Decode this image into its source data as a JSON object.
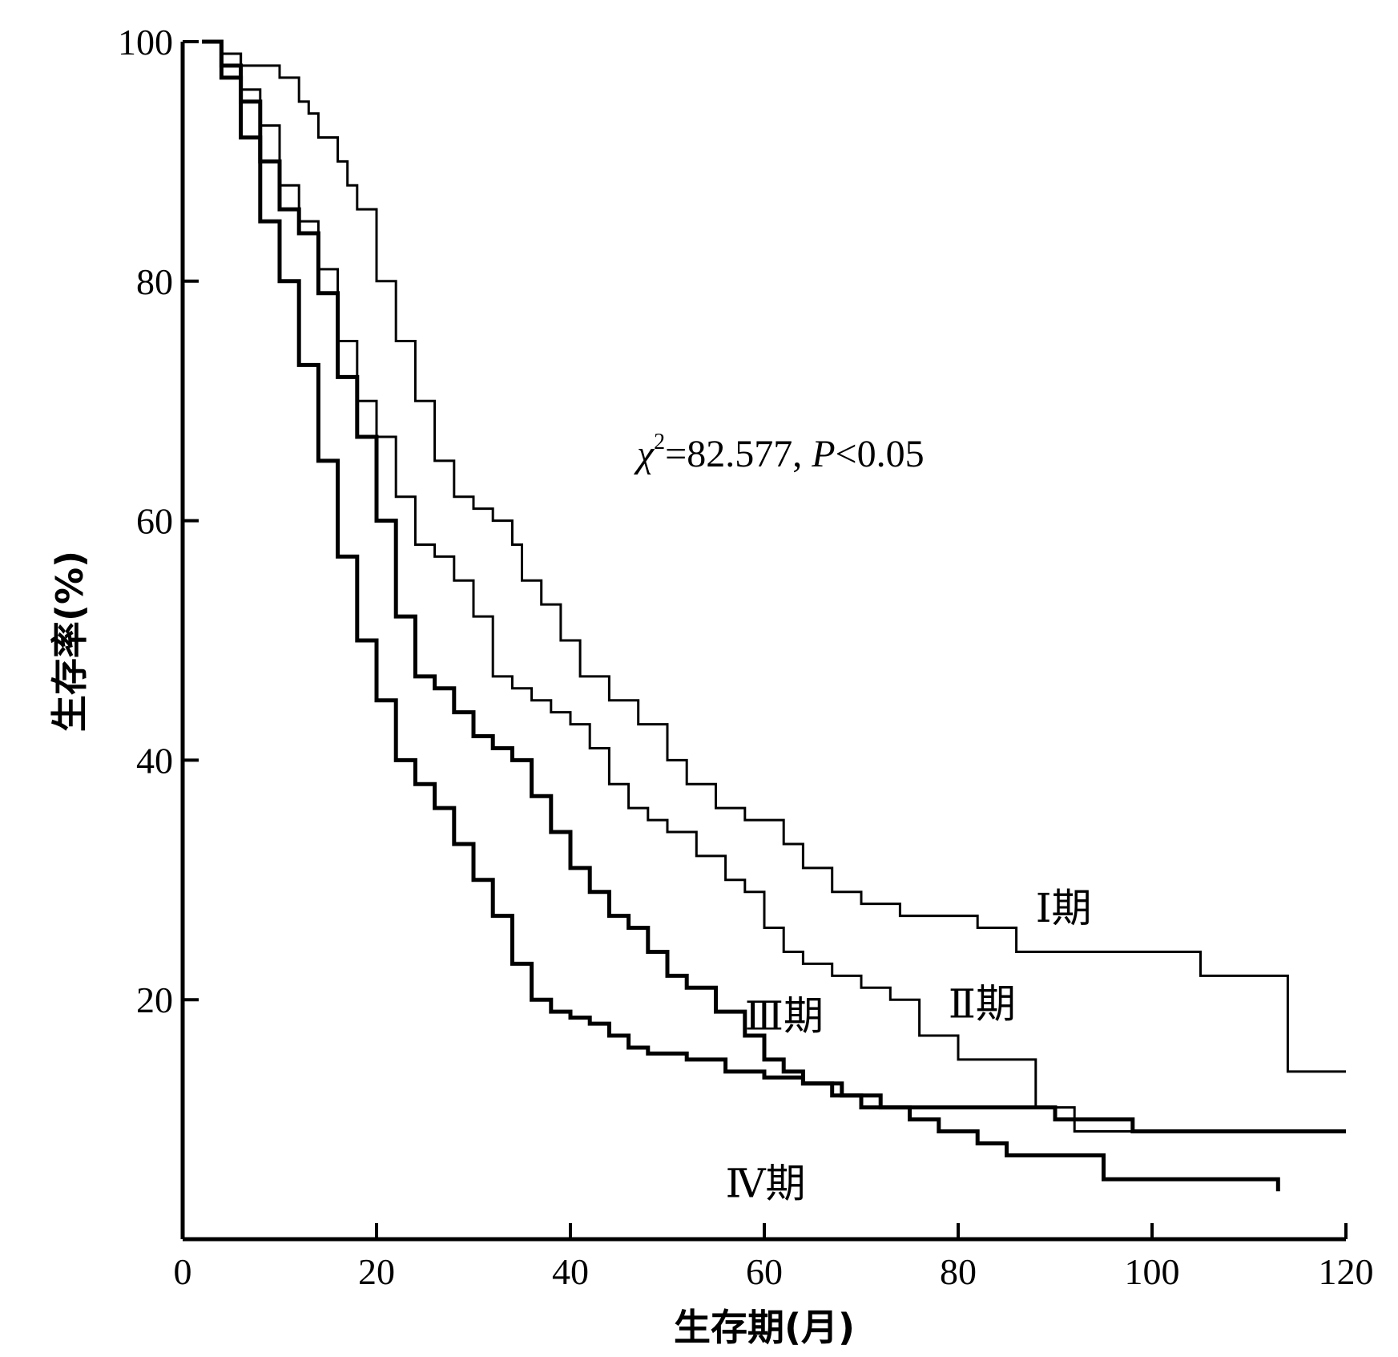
{
  "chart_data": {
    "type": "line",
    "step": true,
    "xlabel": "生存期(月)",
    "ylabel": "生存率(%)",
    "xlim": [
      0,
      120
    ],
    "ylim": [
      0,
      100
    ],
    "x_ticks": [
      0,
      20,
      40,
      60,
      80,
      100,
      120
    ],
    "y_ticks": [
      20,
      40,
      60,
      80,
      100
    ],
    "grid": false,
    "annotation": {
      "chi_symbol": "χ",
      "chi_sup": "2",
      "text_mid": "=82.577, ",
      "p_symbol": "P",
      "text_end": "<0.05"
    },
    "series": [
      {
        "name": "Ⅰ期",
        "color": "#000000",
        "points": [
          [
            2,
            100
          ],
          [
            4,
            99
          ],
          [
            6,
            98
          ],
          [
            8,
            98
          ],
          [
            10,
            97
          ],
          [
            11,
            97
          ],
          [
            12,
            95
          ],
          [
            13,
            94
          ],
          [
            14,
            92
          ],
          [
            16,
            90
          ],
          [
            17,
            88
          ],
          [
            18,
            86
          ],
          [
            20,
            80
          ],
          [
            22,
            75
          ],
          [
            24,
            70
          ],
          [
            26,
            65
          ],
          [
            28,
            62
          ],
          [
            30,
            61
          ],
          [
            32,
            60
          ],
          [
            34,
            58
          ],
          [
            35,
            55
          ],
          [
            37,
            53
          ],
          [
            39,
            50
          ],
          [
            41,
            47
          ],
          [
            44,
            45
          ],
          [
            47,
            43
          ],
          [
            50,
            40
          ],
          [
            52,
            38
          ],
          [
            55,
            36
          ],
          [
            58,
            35
          ],
          [
            62,
            33
          ],
          [
            64,
            31
          ],
          [
            67,
            29
          ],
          [
            70,
            28
          ],
          [
            74,
            27
          ],
          [
            82,
            26
          ],
          [
            86,
            24
          ],
          [
            105,
            22
          ],
          [
            114,
            14
          ],
          [
            120,
            14
          ]
        ]
      },
      {
        "name": "Ⅱ期",
        "color": "#000000",
        "points": [
          [
            2,
            100
          ],
          [
            4,
            99
          ],
          [
            6,
            96
          ],
          [
            8,
            93
          ],
          [
            10,
            88
          ],
          [
            12,
            85
          ],
          [
            14,
            81
          ],
          [
            16,
            75
          ],
          [
            18,
            70
          ],
          [
            20,
            67
          ],
          [
            22,
            62
          ],
          [
            24,
            58
          ],
          [
            26,
            57
          ],
          [
            28,
            55
          ],
          [
            30,
            52
          ],
          [
            32,
            47
          ],
          [
            34,
            46
          ],
          [
            36,
            45
          ],
          [
            38,
            44
          ],
          [
            40,
            43
          ],
          [
            42,
            41
          ],
          [
            44,
            38
          ],
          [
            46,
            36
          ],
          [
            48,
            35
          ],
          [
            50,
            34
          ],
          [
            53,
            32
          ],
          [
            56,
            30
          ],
          [
            58,
            29
          ],
          [
            60,
            26
          ],
          [
            62,
            24
          ],
          [
            64,
            23
          ],
          [
            67,
            22
          ],
          [
            70,
            21
          ],
          [
            73,
            20
          ],
          [
            76,
            17
          ],
          [
            80,
            15
          ],
          [
            85,
            15
          ],
          [
            88,
            11
          ],
          [
            92,
            9
          ],
          [
            100,
            9
          ],
          [
            110,
            9
          ],
          [
            120,
            9
          ]
        ]
      },
      {
        "name": "Ⅲ期",
        "color": "#000000",
        "points": [
          [
            2,
            100
          ],
          [
            4,
            98
          ],
          [
            6,
            95
          ],
          [
            8,
            90
          ],
          [
            10,
            86
          ],
          [
            12,
            84
          ],
          [
            14,
            79
          ],
          [
            16,
            72
          ],
          [
            18,
            67
          ],
          [
            20,
            60
          ],
          [
            22,
            52
          ],
          [
            24,
            47
          ],
          [
            26,
            46
          ],
          [
            28,
            44
          ],
          [
            30,
            42
          ],
          [
            32,
            41
          ],
          [
            34,
            40
          ],
          [
            36,
            37
          ],
          [
            38,
            34
          ],
          [
            40,
            31
          ],
          [
            42,
            29
          ],
          [
            44,
            27
          ],
          [
            46,
            26
          ],
          [
            48,
            24
          ],
          [
            50,
            22
          ],
          [
            52,
            21
          ],
          [
            55,
            19
          ],
          [
            58,
            17
          ],
          [
            60,
            15
          ],
          [
            62,
            14
          ],
          [
            64,
            13
          ],
          [
            67,
            12
          ],
          [
            70,
            11
          ],
          [
            75,
            11
          ],
          [
            85,
            11
          ],
          [
            90,
            10
          ],
          [
            95,
            10
          ],
          [
            98,
            9
          ],
          [
            100,
            9
          ],
          [
            110,
            9
          ],
          [
            120,
            9
          ]
        ]
      },
      {
        "name": "Ⅳ期",
        "color": "#000000",
        "points": [
          [
            2,
            100
          ],
          [
            4,
            97
          ],
          [
            6,
            92
          ],
          [
            8,
            85
          ],
          [
            10,
            80
          ],
          [
            12,
            73
          ],
          [
            14,
            65
          ],
          [
            16,
            57
          ],
          [
            18,
            50
          ],
          [
            20,
            45
          ],
          [
            22,
            40
          ],
          [
            24,
            38
          ],
          [
            26,
            36
          ],
          [
            28,
            33
          ],
          [
            30,
            30
          ],
          [
            32,
            27
          ],
          [
            34,
            23
          ],
          [
            36,
            20
          ],
          [
            38,
            19
          ],
          [
            40,
            18.5
          ],
          [
            42,
            18
          ],
          [
            44,
            17
          ],
          [
            46,
            16
          ],
          [
            48,
            15.5
          ],
          [
            52,
            15
          ],
          [
            56,
            14
          ],
          [
            60,
            13.5
          ],
          [
            64,
            13
          ],
          [
            68,
            12
          ],
          [
            72,
            11
          ],
          [
            75,
            10
          ],
          [
            78,
            9
          ],
          [
            82,
            8
          ],
          [
            85,
            7
          ],
          [
            90,
            7
          ],
          [
            95,
            5
          ],
          [
            100,
            5
          ],
          [
            105,
            5
          ],
          [
            113,
            4
          ]
        ]
      }
    ],
    "series_label_positions": [
      "right-top",
      "right-mid",
      "mid",
      "bottom"
    ]
  }
}
